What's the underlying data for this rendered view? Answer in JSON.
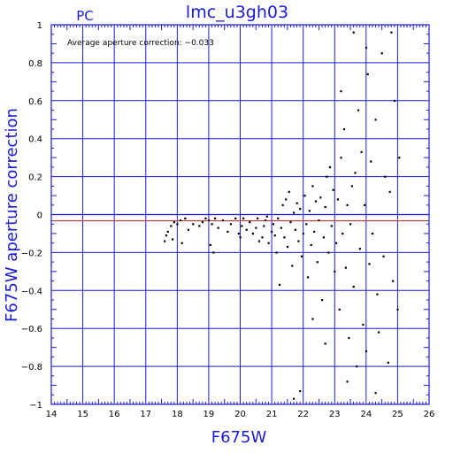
{
  "chart_data": {
    "type": "scatter",
    "title": "lmc_u3gh03",
    "corner_label": "PC",
    "xlabel": "F675W",
    "ylabel": "F675W aperture correction",
    "annotation": "Average aperture correction: −0.033",
    "xlim": [
      14,
      26
    ],
    "ylim": [
      -1,
      1
    ],
    "x_ticks": [
      "14",
      "15",
      "16",
      "17",
      "18",
      "19",
      "20",
      "21",
      "22",
      "23",
      "24",
      "25",
      "26"
    ],
    "y_ticks": [
      "−1",
      "−0.8",
      "−0.6",
      "−0.4",
      "−0.2",
      "0",
      "0.2",
      "0.4",
      "0.6",
      "0.8",
      "1"
    ],
    "x_tick_values": [
      14,
      15,
      16,
      17,
      18,
      19,
      20,
      21,
      22,
      23,
      24,
      25,
      26
    ],
    "y_tick_values": [
      -1,
      -0.8,
      -0.6,
      -0.4,
      -0.2,
      0,
      0.2,
      0.4,
      0.6,
      0.8,
      1
    ],
    "grid": true,
    "average_line": -0.033,
    "zero_line": 0,
    "colors": {
      "frame": "#1a1ad6",
      "grid": "#1a1ad6",
      "avg_line": "#c0392b",
      "points": "#000000"
    },
    "points": [
      [
        17.6,
        -0.14
      ],
      [
        17.65,
        -0.11
      ],
      [
        17.7,
        -0.09
      ],
      [
        17.8,
        -0.06
      ],
      [
        17.85,
        -0.13
      ],
      [
        17.9,
        -0.04
      ],
      [
        18.0,
        -0.05
      ],
      [
        18.1,
        -0.03
      ],
      [
        18.15,
        -0.15
      ],
      [
        18.25,
        -0.02
      ],
      [
        18.35,
        -0.08
      ],
      [
        18.5,
        -0.05
      ],
      [
        18.7,
        -0.06
      ],
      [
        18.8,
        -0.04
      ],
      [
        18.9,
        -0.02
      ],
      [
        19.0,
        -0.03
      ],
      [
        19.05,
        -0.16
      ],
      [
        19.1,
        -0.05
      ],
      [
        19.15,
        -0.2
      ],
      [
        19.2,
        -0.02
      ],
      [
        19.3,
        -0.07
      ],
      [
        19.45,
        -0.03
      ],
      [
        19.6,
        -0.09
      ],
      [
        19.7,
        -0.05
      ],
      [
        19.85,
        -0.02
      ],
      [
        19.95,
        -0.1
      ],
      [
        20.0,
        -0.12
      ],
      [
        20.05,
        -0.06
      ],
      [
        20.1,
        -0.02
      ],
      [
        20.2,
        -0.08
      ],
      [
        20.3,
        -0.04
      ],
      [
        20.4,
        -0.1
      ],
      [
        20.5,
        -0.07
      ],
      [
        20.55,
        -0.02
      ],
      [
        20.6,
        -0.14
      ],
      [
        20.7,
        -0.12
      ],
      [
        20.75,
        -0.06
      ],
      [
        20.8,
        -0.03
      ],
      [
        20.85,
        -0.01
      ],
      [
        20.9,
        -0.15
      ],
      [
        21.0,
        -0.09
      ],
      [
        21.05,
        -0.05
      ],
      [
        21.1,
        -0.11
      ],
      [
        21.15,
        -0.2
      ],
      [
        21.2,
        -0.02
      ],
      [
        21.25,
        -0.37
      ],
      [
        21.3,
        -0.07
      ],
      [
        21.35,
        0.05
      ],
      [
        21.4,
        -0.12
      ],
      [
        21.45,
        0.08
      ],
      [
        21.5,
        -0.17
      ],
      [
        21.55,
        0.12
      ],
      [
        21.6,
        -0.04
      ],
      [
        21.65,
        -0.27
      ],
      [
        21.7,
        0.01
      ],
      [
        21.75,
        -0.08
      ],
      [
        21.8,
        0.06
      ],
      [
        21.85,
        -0.14
      ],
      [
        21.9,
        0.03
      ],
      [
        21.95,
        -0.22
      ],
      [
        22.0,
        -0.1
      ],
      [
        22.05,
        0.1
      ],
      [
        22.1,
        -0.05
      ],
      [
        22.15,
        -0.33
      ],
      [
        22.2,
        0.02
      ],
      [
        22.25,
        -0.16
      ],
      [
        22.3,
        0.15
      ],
      [
        22.35,
        -0.09
      ],
      [
        22.4,
        0.07
      ],
      [
        22.45,
        -0.25
      ],
      [
        22.5,
        -0.03
      ],
      [
        22.55,
        0.09
      ],
      [
        22.6,
        -0.45
      ],
      [
        22.65,
        -0.12
      ],
      [
        22.7,
        0.04
      ],
      [
        22.75,
        0.2
      ],
      [
        22.8,
        -0.2
      ],
      [
        22.85,
        0.25
      ],
      [
        22.9,
        -0.06
      ],
      [
        22.95,
        0.13
      ],
      [
        23.0,
        -0.3
      ],
      [
        23.05,
        -0.15
      ],
      [
        23.1,
        0.08
      ],
      [
        23.15,
        -0.5
      ],
      [
        23.2,
        0.3
      ],
      [
        23.25,
        -0.1
      ],
      [
        23.3,
        0.45
      ],
      [
        23.35,
        -0.28
      ],
      [
        23.4,
        0.05
      ],
      [
        23.45,
        -0.65
      ],
      [
        23.5,
        -0.05
      ],
      [
        23.55,
        0.15
      ],
      [
        23.6,
        -0.38
      ],
      [
        23.65,
        0.22
      ],
      [
        23.7,
        -0.8
      ],
      [
        23.75,
        0.55
      ],
      [
        23.8,
        -0.18
      ],
      [
        23.85,
        0.33
      ],
      [
        23.9,
        -0.58
      ],
      [
        23.95,
        0.05
      ],
      [
        24.0,
        -0.72
      ],
      [
        24.05,
        0.74
      ],
      [
        24.1,
        -0.26
      ],
      [
        24.15,
        0.28
      ],
      [
        24.2,
        -0.1
      ],
      [
        24.3,
        0.5
      ],
      [
        24.35,
        -0.42
      ],
      [
        24.4,
        -0.62
      ],
      [
        24.5,
        0.85
      ],
      [
        24.55,
        -0.22
      ],
      [
        24.6,
        0.2
      ],
      [
        24.7,
        -0.78
      ],
      [
        24.75,
        0.12
      ],
      [
        24.85,
        -0.35
      ],
      [
        24.9,
        0.6
      ],
      [
        25.0,
        -0.5
      ],
      [
        25.05,
        0.3
      ],
      [
        21.7,
        -0.97
      ],
      [
        21.9,
        -0.93
      ],
      [
        22.3,
        -0.55
      ],
      [
        22.7,
        -0.68
      ],
      [
        23.4,
        -0.88
      ],
      [
        23.2,
        0.65
      ],
      [
        23.6,
        0.96
      ],
      [
        24.0,
        0.88
      ],
      [
        24.8,
        0.96
      ],
      [
        24.3,
        -0.94
      ]
    ]
  }
}
